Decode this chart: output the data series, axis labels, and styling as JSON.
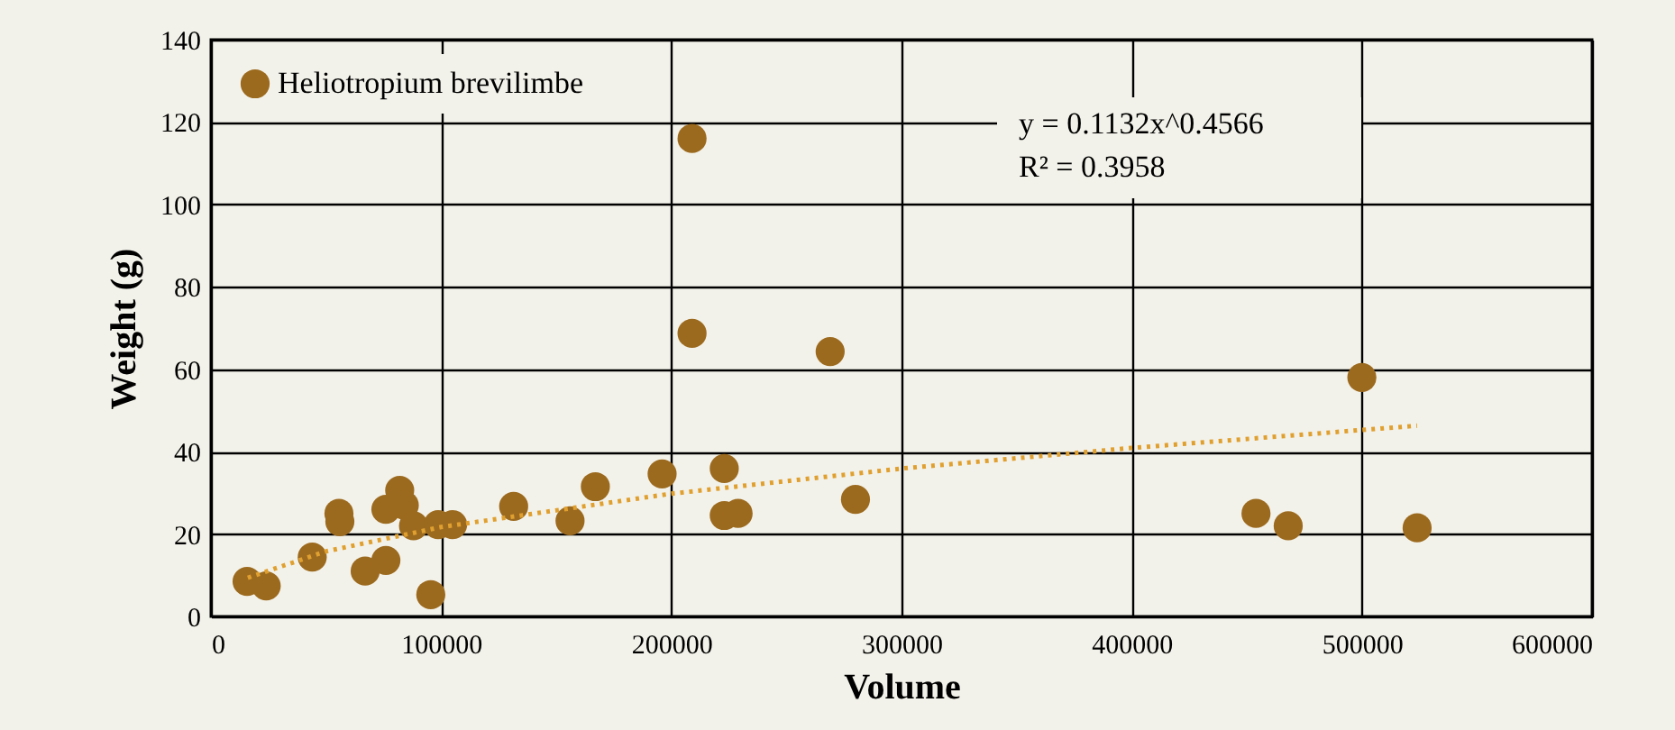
{
  "chart_data": {
    "type": "scatter",
    "xlabel": "Volume",
    "ylabel": "Weight (g)",
    "xlim": [
      0,
      600000
    ],
    "xticks": [
      0,
      100000,
      200000,
      300000,
      400000,
      500000,
      600000
    ],
    "ylim": [
      0,
      140
    ],
    "yticks": [
      0,
      20,
      40,
      60,
      80,
      100,
      120,
      140
    ],
    "grid": true,
    "legend": "top left",
    "marker": "circle",
    "annotations": [
      "y = 0.1132x^0.4566",
      "R² = 0.3958"
    ],
    "series": [
      {
        "name": "Heliotropium brevilimbe",
        "color": "#9c6a1e",
        "x": [
          15700,
          24000,
          44000,
          55600,
          56000,
          67000,
          76000,
          76000,
          82000,
          84000,
          88000,
          95500,
          98700,
          105000,
          131500,
          156000,
          167000,
          196000,
          209000,
          209000,
          223000,
          223000,
          229000,
          269000,
          280000,
          454000,
          468000,
          500000,
          524000
        ],
        "values": [
          8.5,
          7.4,
          14.4,
          25,
          23,
          11,
          13.6,
          26,
          30.6,
          27,
          22,
          5.3,
          22.3,
          22.3,
          26.7,
          23.2,
          31.5,
          34.6,
          116,
          68.7,
          35.9,
          24.5,
          25,
          64.3,
          28.4,
          25,
          22,
          58,
          21.5
        ]
      },
      {
        "color": "#e0a030",
        "type": "line",
        "marker": "none",
        "line_style": "dotted",
        "x": [
          16000,
          50000,
          100000,
          200000,
          300000,
          400000,
          524000
        ],
        "values": [
          9.4,
          15.8,
          21.7,
          29.8,
          35.9,
          40.9,
          46.3
        ]
      }
    ]
  }
}
